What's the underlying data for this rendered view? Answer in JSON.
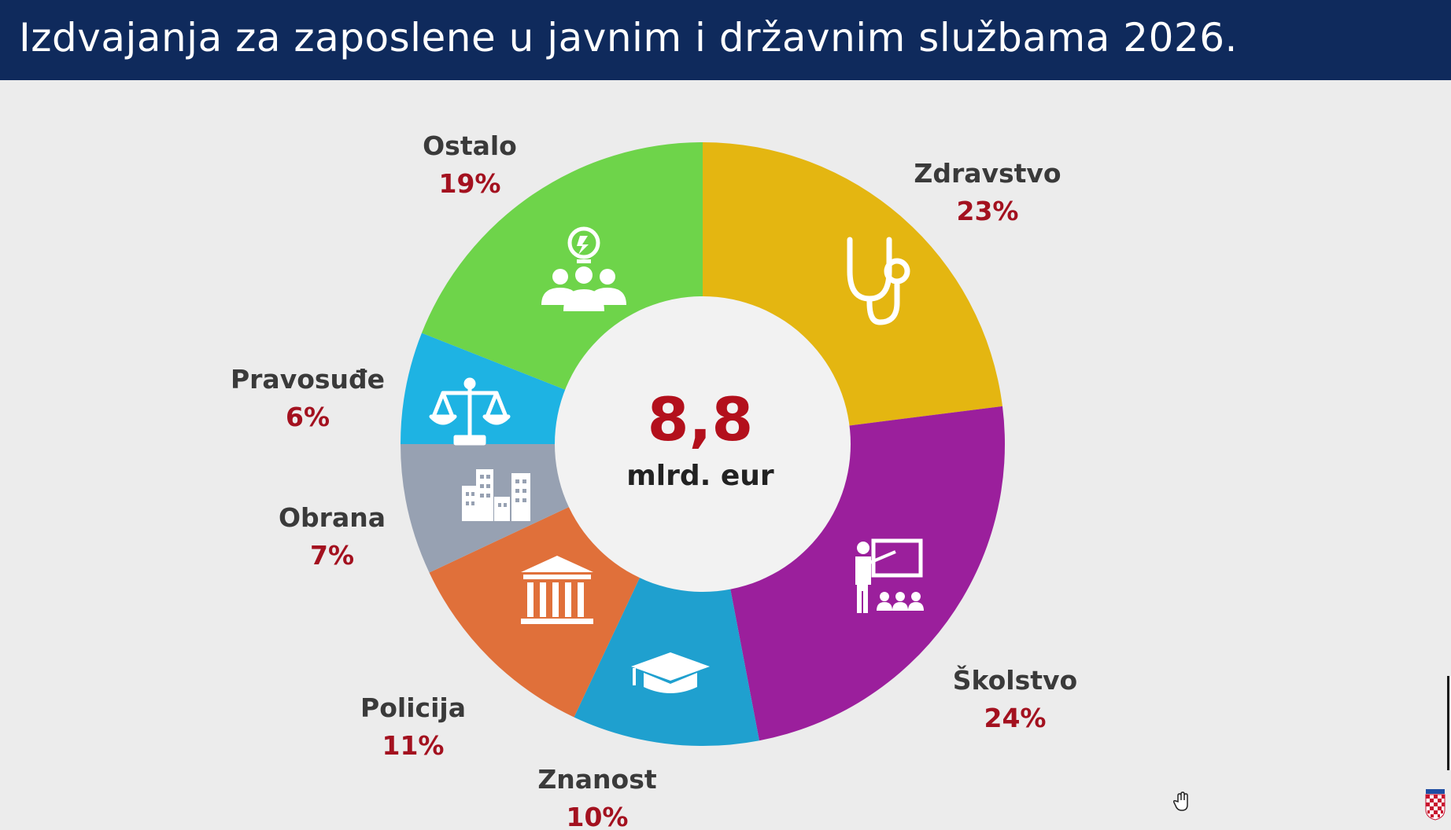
{
  "header": {
    "title": "Izdvajanja za zaposlene u javnim i državnim službama 2026."
  },
  "center": {
    "value": "8,8",
    "unit": "mlrd. eur"
  },
  "colors": {
    "header_bg": "#0f2a5c",
    "label_name": "#3a3a3a",
    "label_percent": "#a3111f",
    "center_value": "#b3101c"
  },
  "chart_data": {
    "type": "pie",
    "donut": true,
    "start": "12 o'clock",
    "direction": "clockwise",
    "title": "Izdvajanja za zaposlene u javnim i državnim službama 2026.",
    "total_label": "8,8 mlrd. eur",
    "slices": [
      {
        "name": "Zdravstvo",
        "label": "23%",
        "value": 23,
        "color": "#e4b611",
        "icon": "stethoscope-icon"
      },
      {
        "name": "Školstvo",
        "label": "24%",
        "value": 24,
        "color": "#9b1f9c",
        "icon": "teacher-classroom-icon"
      },
      {
        "name": "Znanost",
        "label": "10%",
        "value": 10,
        "color": "#1fa0cf",
        "icon": "graduation-cap-icon"
      },
      {
        "name": "Policija",
        "label": "11%",
        "value": 11,
        "color": "#e0703a",
        "icon": "institution-building-icon"
      },
      {
        "name": "Obrana",
        "label": "7%",
        "value": 7,
        "color": "#97a1b2",
        "icon": "city-buildings-icon"
      },
      {
        "name": "Pravosuđe",
        "label": "6%",
        "value": 6,
        "color": "#1eb3e3",
        "icon": "scales-of-justice-icon"
      },
      {
        "name": "Ostalo",
        "label": "19%",
        "value": 19,
        "color": "#6ed44a",
        "icon": "team-idea-icon"
      }
    ]
  }
}
